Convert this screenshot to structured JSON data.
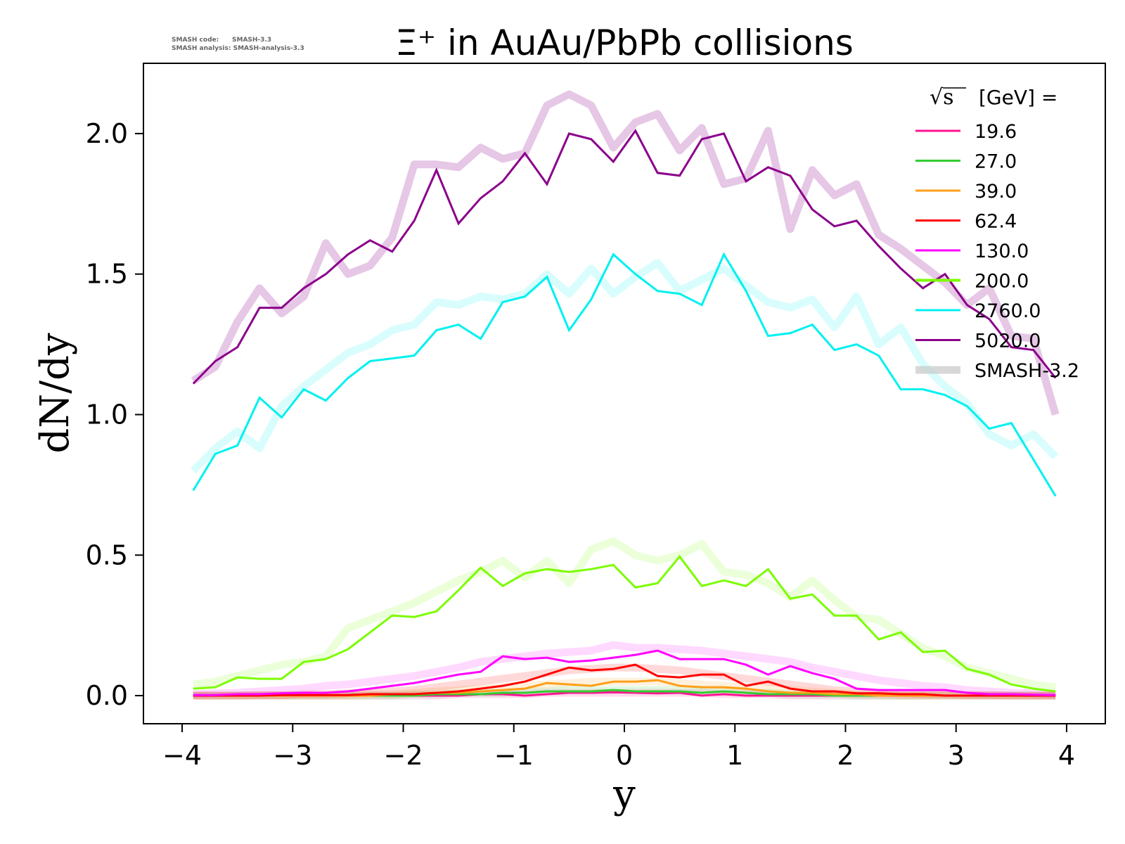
{
  "watermark": {
    "line1": "SMASH code:      SMASH-3.3",
    "line2": "SMASH analysis: SMASH-analysis-3.3"
  },
  "chart_data": {
    "type": "line",
    "title": "Ξ⁺ in AuAu/PbPb collisions",
    "xlabel": "y",
    "ylabel": "dN/dy",
    "xlim": [
      -4.35,
      4.35
    ],
    "ylim": [
      -0.1,
      2.25
    ],
    "xticks": [
      -4,
      -3,
      -2,
      -1,
      0,
      1,
      2,
      3,
      4
    ],
    "xtick_labels": [
      "−4",
      "−3",
      "−2",
      "−1",
      "0",
      "1",
      "2",
      "3",
      "4"
    ],
    "yticks": [
      0.0,
      0.5,
      1.0,
      1.5,
      2.0
    ],
    "ytick_labels": [
      "0.0",
      "0.5",
      "1.0",
      "1.5",
      "2.0"
    ],
    "grid": false,
    "legend": {
      "placement": "top-right",
      "title_symbol": "√s",
      "title": "[GeV] =",
      "reference_label": "SMASH-3.2"
    },
    "x": [
      -3.9,
      -3.7,
      -3.5,
      -3.3,
      -3.1,
      -2.9,
      -2.7,
      -2.5,
      -2.3,
      -2.1,
      -1.9,
      -1.7,
      -1.5,
      -1.3,
      -1.1,
      -0.9,
      -0.7,
      -0.5,
      -0.3,
      -0.1,
      0.1,
      0.3,
      0.5,
      0.7,
      0.9,
      1.1,
      1.3,
      1.5,
      1.7,
      1.9,
      2.1,
      2.3,
      2.5,
      2.7,
      2.9,
      3.1,
      3.3,
      3.5,
      3.7,
      3.9
    ],
    "series": [
      {
        "name": "19.6",
        "color": "#ff1493",
        "values": [
          0.0,
          0.0,
          0.0,
          0.0,
          0.0,
          0.0,
          0.0,
          0.0,
          0.0,
          0.0,
          0.0,
          0.0,
          0.0,
          0.005,
          0.005,
          0.0,
          0.005,
          0.01,
          0.01,
          0.012,
          0.01,
          0.008,
          0.01,
          0.0,
          0.005,
          0.0,
          0.0,
          0.0,
          0.0,
          0.0,
          0.0,
          0.0,
          0.0,
          0.0,
          0.0,
          0.0,
          0.0,
          0.0,
          0.0,
          0.0
        ],
        "reference": [
          0.0,
          0.0,
          0.0,
          0.0,
          0.0,
          0.0,
          0.0,
          0.0,
          0.0,
          0.0,
          0.0,
          0.0,
          0.005,
          0.005,
          0.005,
          0.005,
          0.01,
          0.01,
          0.01,
          0.01,
          0.01,
          0.01,
          0.01,
          0.01,
          0.005,
          0.005,
          0.005,
          0.0,
          0.0,
          0.0,
          0.0,
          0.0,
          0.0,
          0.0,
          0.0,
          0.0,
          0.0,
          0.0,
          0.0,
          0.0
        ]
      },
      {
        "name": "27.0",
        "color": "#32cd32",
        "values": [
          0.0,
          0.0,
          0.0,
          0.0,
          0.0,
          0.0,
          0.0,
          0.0,
          0.0,
          0.0,
          0.0,
          0.005,
          0.005,
          0.005,
          0.01,
          0.01,
          0.015,
          0.015,
          0.015,
          0.02,
          0.015,
          0.015,
          0.015,
          0.01,
          0.015,
          0.01,
          0.005,
          0.005,
          0.005,
          0.0,
          0.0,
          0.0,
          0.0,
          0.0,
          0.0,
          0.0,
          0.0,
          0.0,
          0.0,
          0.0
        ],
        "reference": [
          0.0,
          0.0,
          0.0,
          0.0,
          0.0,
          0.0,
          0.0,
          0.0,
          0.0,
          0.0,
          0.005,
          0.005,
          0.01,
          0.01,
          0.01,
          0.015,
          0.015,
          0.02,
          0.02,
          0.02,
          0.02,
          0.02,
          0.02,
          0.015,
          0.015,
          0.01,
          0.01,
          0.005,
          0.005,
          0.005,
          0.0,
          0.0,
          0.0,
          0.0,
          0.0,
          0.0,
          0.0,
          0.0,
          0.0,
          0.0
        ]
      },
      {
        "name": "39.0",
        "color": "#ff9f1a",
        "values": [
          0.0,
          0.0,
          0.0,
          0.0,
          0.0,
          0.0,
          0.0,
          0.0,
          0.0,
          0.005,
          0.005,
          0.01,
          0.01,
          0.015,
          0.02,
          0.025,
          0.045,
          0.04,
          0.035,
          0.05,
          0.05,
          0.055,
          0.035,
          0.03,
          0.03,
          0.025,
          0.015,
          0.01,
          0.01,
          0.005,
          0.005,
          0.0,
          0.0,
          0.0,
          0.0,
          0.0,
          0.0,
          0.0,
          0.0,
          0.0
        ],
        "reference": [
          0.0,
          0.0,
          0.0,
          0.0,
          0.0,
          0.0,
          0.0,
          0.0,
          0.005,
          0.005,
          0.01,
          0.015,
          0.02,
          0.025,
          0.03,
          0.035,
          0.04,
          0.045,
          0.05,
          0.05,
          0.05,
          0.05,
          0.045,
          0.04,
          0.035,
          0.03,
          0.025,
          0.02,
          0.015,
          0.01,
          0.005,
          0.005,
          0.0,
          0.0,
          0.0,
          0.0,
          0.0,
          0.0,
          0.0,
          0.0
        ]
      },
      {
        "name": "62.4",
        "color": "#ff0000",
        "values": [
          0.0,
          0.0,
          0.0,
          0.0,
          0.002,
          0.002,
          0.002,
          0.002,
          0.005,
          0.005,
          0.005,
          0.01,
          0.015,
          0.025,
          0.035,
          0.05,
          0.075,
          0.1,
          0.09,
          0.095,
          0.11,
          0.07,
          0.065,
          0.075,
          0.075,
          0.035,
          0.05,
          0.025,
          0.015,
          0.015,
          0.008,
          0.008,
          0.005,
          0.005,
          0.0,
          0.0,
          0.0,
          0.0,
          0.0,
          0.0
        ],
        "reference": [
          0.0,
          0.0,
          0.0,
          0.002,
          0.002,
          0.005,
          0.005,
          0.008,
          0.01,
          0.015,
          0.02,
          0.03,
          0.04,
          0.05,
          0.06,
          0.07,
          0.08,
          0.09,
          0.095,
          0.1,
          0.1,
          0.095,
          0.09,
          0.08,
          0.07,
          0.06,
          0.05,
          0.04,
          0.03,
          0.02,
          0.015,
          0.01,
          0.008,
          0.005,
          0.005,
          0.002,
          0.002,
          0.0,
          0.0,
          0.0
        ]
      },
      {
        "name": "130.0",
        "color": "#ff00ff",
        "values": [
          0.002,
          0.002,
          0.005,
          0.005,
          0.008,
          0.01,
          0.01,
          0.015,
          0.025,
          0.035,
          0.045,
          0.06,
          0.075,
          0.085,
          0.14,
          0.13,
          0.135,
          0.12,
          0.125,
          0.135,
          0.145,
          0.16,
          0.13,
          0.13,
          0.13,
          0.11,
          0.075,
          0.105,
          0.08,
          0.06,
          0.025,
          0.02,
          0.02,
          0.02,
          0.02,
          0.01,
          0.005,
          0.005,
          0.003,
          0.002
        ],
        "reference": [
          0.005,
          0.008,
          0.01,
          0.015,
          0.02,
          0.025,
          0.035,
          0.04,
          0.05,
          0.06,
          0.07,
          0.085,
          0.1,
          0.12,
          0.13,
          0.14,
          0.15,
          0.155,
          0.16,
          0.18,
          0.17,
          0.17,
          0.165,
          0.16,
          0.15,
          0.14,
          0.13,
          0.12,
          0.1,
          0.085,
          0.07,
          0.055,
          0.045,
          0.035,
          0.03,
          0.02,
          0.015,
          0.01,
          0.008,
          0.005
        ]
      },
      {
        "name": "200.0",
        "color": "#7cfc00",
        "values": [
          0.025,
          0.03,
          0.065,
          0.06,
          0.06,
          0.12,
          0.13,
          0.165,
          0.225,
          0.285,
          0.28,
          0.3,
          0.375,
          0.455,
          0.39,
          0.435,
          0.45,
          0.44,
          0.45,
          0.465,
          0.385,
          0.4,
          0.495,
          0.39,
          0.41,
          0.39,
          0.45,
          0.345,
          0.36,
          0.285,
          0.285,
          0.2,
          0.225,
          0.155,
          0.16,
          0.095,
          0.075,
          0.04,
          0.025,
          0.015
        ],
        "reference": [
          0.04,
          0.05,
          0.07,
          0.09,
          0.11,
          0.12,
          0.14,
          0.24,
          0.27,
          0.3,
          0.33,
          0.37,
          0.41,
          0.44,
          0.48,
          0.42,
          0.48,
          0.4,
          0.52,
          0.55,
          0.5,
          0.48,
          0.5,
          0.54,
          0.44,
          0.43,
          0.4,
          0.35,
          0.41,
          0.34,
          0.28,
          0.27,
          0.22,
          0.17,
          0.14,
          0.1,
          0.08,
          0.06,
          0.04,
          0.03
        ]
      },
      {
        "name": "2760.0",
        "color": "#00f0f0",
        "values": [
          0.73,
          0.86,
          0.89,
          1.06,
          0.99,
          1.09,
          1.05,
          1.13,
          1.19,
          1.2,
          1.21,
          1.3,
          1.32,
          1.27,
          1.4,
          1.42,
          1.49,
          1.3,
          1.41,
          1.57,
          1.5,
          1.44,
          1.43,
          1.39,
          1.57,
          1.44,
          1.28,
          1.29,
          1.32,
          1.23,
          1.25,
          1.21,
          1.09,
          1.09,
          1.07,
          1.03,
          0.95,
          0.97,
          0.84,
          0.71
        ],
        "reference": [
          0.8,
          0.88,
          0.94,
          0.88,
          1.03,
          1.1,
          1.16,
          1.22,
          1.25,
          1.3,
          1.32,
          1.4,
          1.39,
          1.42,
          1.41,
          1.43,
          1.5,
          1.43,
          1.52,
          1.43,
          1.49,
          1.54,
          1.44,
          1.48,
          1.52,
          1.46,
          1.4,
          1.38,
          1.41,
          1.31,
          1.42,
          1.25,
          1.31,
          1.18,
          1.1,
          1.04,
          0.93,
          0.89,
          0.93,
          0.85
        ]
      },
      {
        "name": "5020.0",
        "color": "#8b008b",
        "values": [
          1.11,
          1.19,
          1.24,
          1.38,
          1.38,
          1.45,
          1.5,
          1.57,
          1.62,
          1.58,
          1.69,
          1.87,
          1.68,
          1.77,
          1.83,
          1.93,
          1.82,
          2.0,
          1.98,
          1.9,
          2.01,
          1.86,
          1.85,
          1.98,
          2.0,
          1.83,
          1.88,
          1.85,
          1.73,
          1.67,
          1.69,
          1.6,
          1.52,
          1.45,
          1.5,
          1.39,
          1.34,
          1.24,
          1.23,
          1.13
        ],
        "reference": [
          1.12,
          1.17,
          1.33,
          1.45,
          1.36,
          1.42,
          1.61,
          1.5,
          1.53,
          1.63,
          1.89,
          1.89,
          1.88,
          1.95,
          1.91,
          1.93,
          2.1,
          2.14,
          2.1,
          1.95,
          2.04,
          2.07,
          1.94,
          2.02,
          1.82,
          1.84,
          2.01,
          1.66,
          1.87,
          1.78,
          1.82,
          1.64,
          1.59,
          1.53,
          1.47,
          1.39,
          1.45,
          1.28,
          1.27,
          1.0
        ]
      }
    ]
  }
}
